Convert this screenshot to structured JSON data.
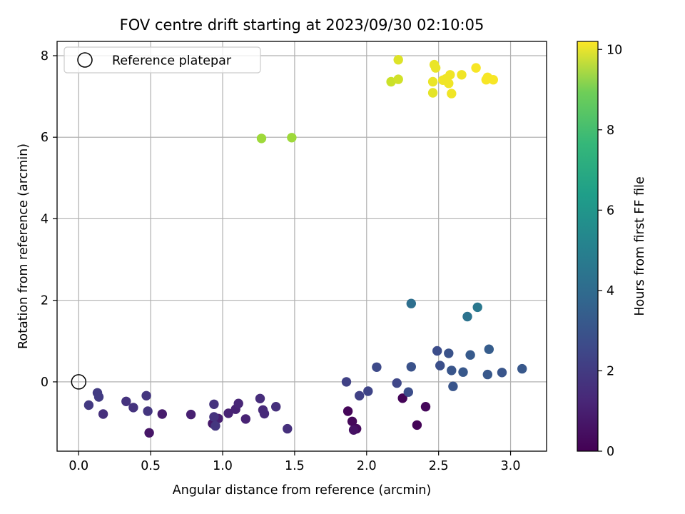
{
  "chart_data": {
    "type": "scatter",
    "title": "FOV centre drift starting at 2023/09/30 02:10:05",
    "xlabel": "Angular distance from reference (arcmin)",
    "ylabel": "Rotation from reference (arcmin)",
    "xlim": [
      -0.15,
      3.25
    ],
    "ylim": [
      -1.7,
      8.35
    ],
    "xticks": [
      0.0,
      0.5,
      1.0,
      1.5,
      2.0,
      2.5,
      3.0
    ],
    "xtick_labels": [
      "0.0",
      "0.5",
      "1.0",
      "1.5",
      "2.0",
      "2.5",
      "3.0"
    ],
    "yticks": [
      0,
      2,
      4,
      6,
      8
    ],
    "ytick_labels": [
      "0",
      "2",
      "4",
      "6",
      "8"
    ],
    "grid": true,
    "legend": {
      "location": "upper-left",
      "entries": [
        {
          "label": "Reference platepar",
          "marker": "open-circle"
        }
      ]
    },
    "reference_point": {
      "x": 0.0,
      "y": 0.0
    },
    "colorbar": {
      "label": "Hours from first FF file",
      "range": [
        0,
        10.2
      ],
      "colormap": "viridis",
      "ticks": [
        0,
        2,
        4,
        6,
        8,
        10
      ],
      "tick_labels": [
        "0",
        "2",
        "4",
        "6",
        "8",
        "10"
      ]
    },
    "points": [
      {
        "x": 1.87,
        "y": -0.72,
        "c": 0.15
      },
      {
        "x": 1.9,
        "y": -0.97,
        "c": 0.2
      },
      {
        "x": 1.93,
        "y": -1.15,
        "c": 0.25
      },
      {
        "x": 1.91,
        "y": -1.18,
        "c": 0.5
      },
      {
        "x": 2.25,
        "y": -0.4,
        "c": 0.1
      },
      {
        "x": 2.35,
        "y": -1.06,
        "c": 0.1
      },
      {
        "x": 2.41,
        "y": -0.61,
        "c": 0.2
      },
      {
        "x": 0.49,
        "y": -1.25,
        "c": 0.6
      },
      {
        "x": 0.58,
        "y": -0.79,
        "c": 0.8
      },
      {
        "x": 0.78,
        "y": -0.8,
        "c": 0.9
      },
      {
        "x": 0.93,
        "y": -1.02,
        "c": 0.7
      },
      {
        "x": 0.97,
        "y": -0.9,
        "c": 0.9
      },
      {
        "x": 1.04,
        "y": -0.77,
        "c": 1.0
      },
      {
        "x": 1.09,
        "y": -0.67,
        "c": 1.0
      },
      {
        "x": 1.11,
        "y": -0.53,
        "c": 1.1
      },
      {
        "x": 1.16,
        "y": -0.91,
        "c": 1.0
      },
      {
        "x": 1.28,
        "y": -0.69,
        "c": 1.2
      },
      {
        "x": 1.29,
        "y": -0.78,
        "c": 1.2
      },
      {
        "x": 1.26,
        "y": -0.41,
        "c": 1.3
      },
      {
        "x": 1.37,
        "y": -0.61,
        "c": 1.4
      },
      {
        "x": 1.45,
        "y": -1.15,
        "c": 1.4
      },
      {
        "x": 0.94,
        "y": -0.55,
        "c": 1.5
      },
      {
        "x": 0.94,
        "y": -0.86,
        "c": 1.5
      },
      {
        "x": 0.95,
        "y": -1.08,
        "c": 1.6
      },
      {
        "x": 0.47,
        "y": -0.34,
        "c": 1.6
      },
      {
        "x": 0.48,
        "y": -0.72,
        "c": 1.6
      },
      {
        "x": 0.38,
        "y": -0.63,
        "c": 1.5
      },
      {
        "x": 0.33,
        "y": -0.48,
        "c": 1.5
      },
      {
        "x": 0.17,
        "y": -0.79,
        "c": 1.4
      },
      {
        "x": 0.13,
        "y": -0.27,
        "c": 1.8
      },
      {
        "x": 0.14,
        "y": -0.37,
        "c": 1.8
      },
      {
        "x": 0.07,
        "y": -0.57,
        "c": 1.7
      },
      {
        "x": 1.86,
        "y": 0.0,
        "c": 2.0
      },
      {
        "x": 1.95,
        "y": -0.34,
        "c": 2.0
      },
      {
        "x": 2.01,
        "y": -0.23,
        "c": 2.1
      },
      {
        "x": 2.07,
        "y": 0.36,
        "c": 2.3
      },
      {
        "x": 2.21,
        "y": -0.03,
        "c": 2.2
      },
      {
        "x": 2.29,
        "y": -0.25,
        "c": 2.4
      },
      {
        "x": 2.31,
        "y": 0.37,
        "c": 2.6
      },
      {
        "x": 2.49,
        "y": 0.76,
        "c": 2.4
      },
      {
        "x": 2.51,
        "y": 0.4,
        "c": 2.5
      },
      {
        "x": 2.57,
        "y": 0.7,
        "c": 2.6
      },
      {
        "x": 2.59,
        "y": 0.28,
        "c": 2.7
      },
      {
        "x": 2.6,
        "y": -0.11,
        "c": 2.7
      },
      {
        "x": 2.67,
        "y": 0.24,
        "c": 2.8
      },
      {
        "x": 2.72,
        "y": 0.66,
        "c": 2.9
      },
      {
        "x": 2.84,
        "y": 0.18,
        "c": 2.8
      },
      {
        "x": 2.85,
        "y": 0.8,
        "c": 3.0
      },
      {
        "x": 2.94,
        "y": 0.23,
        "c": 2.7
      },
      {
        "x": 3.08,
        "y": 0.32,
        "c": 2.8
      },
      {
        "x": 2.31,
        "y": 1.92,
        "c": 3.7
      },
      {
        "x": 2.7,
        "y": 1.6,
        "c": 3.9
      },
      {
        "x": 2.77,
        "y": 1.83,
        "c": 4.1
      },
      {
        "x": 1.27,
        "y": 5.97,
        "c": 8.7
      },
      {
        "x": 1.48,
        "y": 5.99,
        "c": 8.7
      },
      {
        "x": 2.17,
        "y": 7.36,
        "c": 9.4
      },
      {
        "x": 2.22,
        "y": 7.42,
        "c": 9.5
      },
      {
        "x": 2.22,
        "y": 7.9,
        "c": 9.7
      },
      {
        "x": 2.46,
        "y": 7.09,
        "c": 9.8
      },
      {
        "x": 2.46,
        "y": 7.36,
        "c": 9.9
      },
      {
        "x": 2.47,
        "y": 7.78,
        "c": 9.9
      },
      {
        "x": 2.48,
        "y": 7.7,
        "c": 9.9
      },
      {
        "x": 2.53,
        "y": 7.4,
        "c": 10.0
      },
      {
        "x": 2.55,
        "y": 7.43,
        "c": 10.0
      },
      {
        "x": 2.57,
        "y": 7.32,
        "c": 10.0
      },
      {
        "x": 2.58,
        "y": 7.53,
        "c": 10.0
      },
      {
        "x": 2.59,
        "y": 7.07,
        "c": 10.0
      },
      {
        "x": 2.66,
        "y": 7.53,
        "c": 10.0
      },
      {
        "x": 2.76,
        "y": 7.7,
        "c": 10.1
      },
      {
        "x": 2.83,
        "y": 7.41,
        "c": 10.1
      },
      {
        "x": 2.84,
        "y": 7.47,
        "c": 10.1
      },
      {
        "x": 2.88,
        "y": 7.41,
        "c": 10.1
      }
    ]
  }
}
